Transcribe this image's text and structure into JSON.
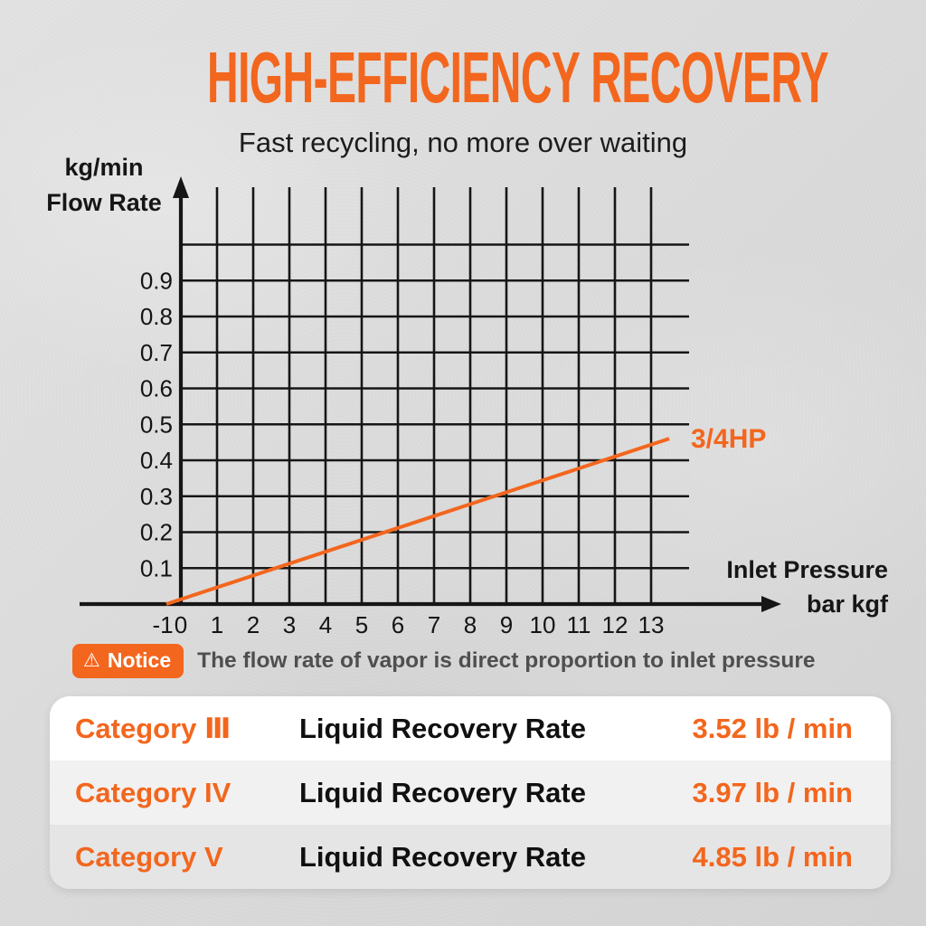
{
  "header": {
    "title": "HIGH-EFFICIENCY RECOVERY",
    "subtitle": "Fast recycling, no more over waiting"
  },
  "chart_data": {
    "type": "line",
    "y_axis_title_line1": "kg/min",
    "y_axis_title_line2": "Flow Rate",
    "x_axis_title_line1": "Inlet Pressure",
    "x_axis_title_line2": "bar kgf",
    "x_ticks": [
      "-1",
      "0",
      "1",
      "2",
      "3",
      "4",
      "5",
      "6",
      "7",
      "8",
      "9",
      "10",
      "11",
      "12",
      "13"
    ],
    "y_ticks": [
      "0.1",
      "0.2",
      "0.3",
      "0.4",
      "0.5",
      "0.6",
      "0.7",
      "0.8",
      "0.9"
    ],
    "y_gridlines": [
      0.1,
      0.2,
      0.3,
      0.4,
      0.5,
      0.6,
      0.7,
      0.8,
      0.9,
      1.0
    ],
    "xlim": [
      -1,
      13.5
    ],
    "ylim": [
      0,
      1.15
    ],
    "grid": true,
    "axis_color": "#161616",
    "series": [
      {
        "name": "3/4HP",
        "color": "#F3661D",
        "x": [
          -0.4,
          13.5
        ],
        "y": [
          0.0,
          0.46
        ]
      }
    ]
  },
  "notice": {
    "icon": "warning-triangle-icon",
    "badge_label": "Notice",
    "text": "The flow rate of vapor is direct proportion to inlet pressure"
  },
  "table": {
    "rows": [
      {
        "category": "Category Ⅲ",
        "metric": "Liquid Recovery Rate",
        "value": "3.52 lb / min"
      },
      {
        "category": "Category IV",
        "metric": "Liquid Recovery Rate",
        "value": "3.97 lb / min"
      },
      {
        "category": "Category V",
        "metric": "Liquid Recovery Rate",
        "value": "4.85 lb / min"
      }
    ]
  },
  "colors": {
    "accent_orange": "#F3661D",
    "axis_black": "#161616",
    "notice_text_gray": "#4f4f4f",
    "background_gray": "#dbdbdb"
  }
}
